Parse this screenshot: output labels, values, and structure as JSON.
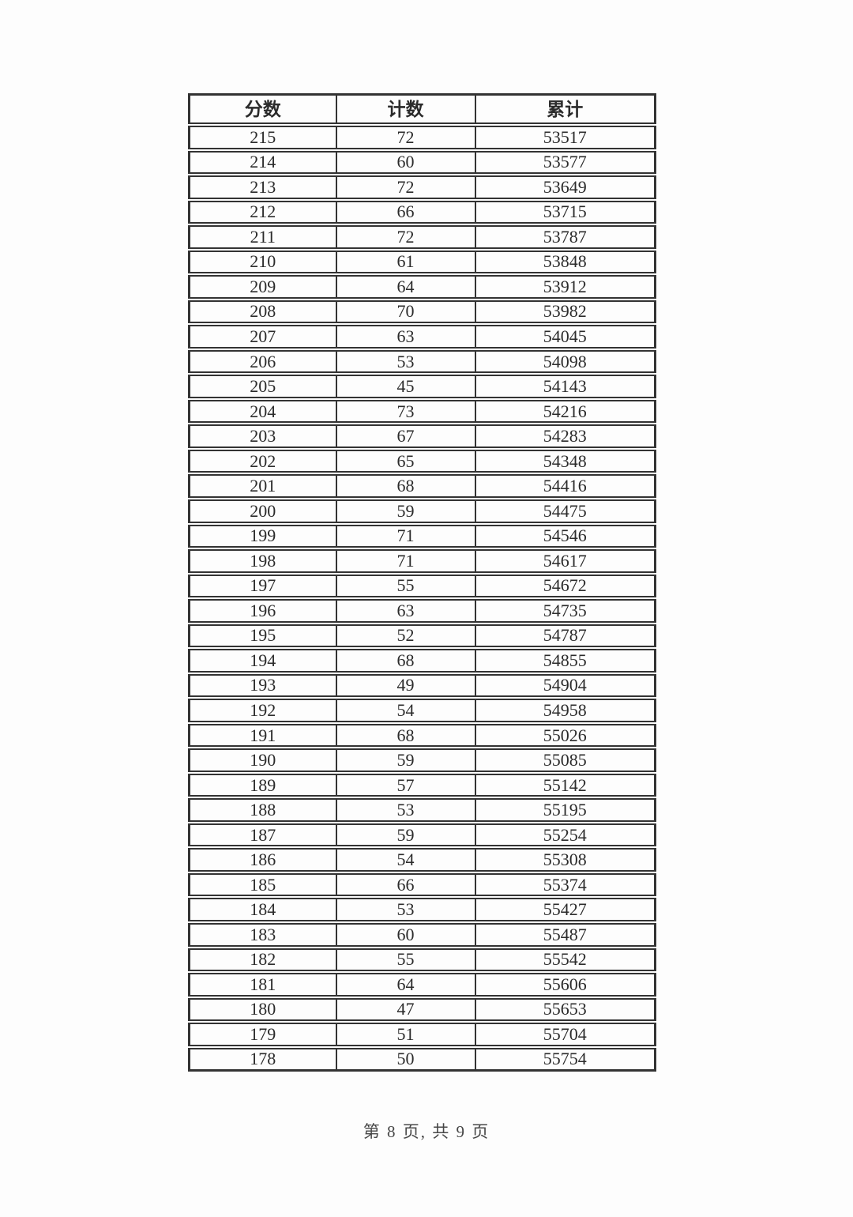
{
  "table": {
    "headers": [
      "分数",
      "计数",
      "累计"
    ],
    "rows": [
      [
        215,
        72,
        53517
      ],
      [
        214,
        60,
        53577
      ],
      [
        213,
        72,
        53649
      ],
      [
        212,
        66,
        53715
      ],
      [
        211,
        72,
        53787
      ],
      [
        210,
        61,
        53848
      ],
      [
        209,
        64,
        53912
      ],
      [
        208,
        70,
        53982
      ],
      [
        207,
        63,
        54045
      ],
      [
        206,
        53,
        54098
      ],
      [
        205,
        45,
        54143
      ],
      [
        204,
        73,
        54216
      ],
      [
        203,
        67,
        54283
      ],
      [
        202,
        65,
        54348
      ],
      [
        201,
        68,
        54416
      ],
      [
        200,
        59,
        54475
      ],
      [
        199,
        71,
        54546
      ],
      [
        198,
        71,
        54617
      ],
      [
        197,
        55,
        54672
      ],
      [
        196,
        63,
        54735
      ],
      [
        195,
        52,
        54787
      ],
      [
        194,
        68,
        54855
      ],
      [
        193,
        49,
        54904
      ],
      [
        192,
        54,
        54958
      ],
      [
        191,
        68,
        55026
      ],
      [
        190,
        59,
        55085
      ],
      [
        189,
        57,
        55142
      ],
      [
        188,
        53,
        55195
      ],
      [
        187,
        59,
        55254
      ],
      [
        186,
        54,
        55308
      ],
      [
        185,
        66,
        55374
      ],
      [
        184,
        53,
        55427
      ],
      [
        183,
        60,
        55487
      ],
      [
        182,
        55,
        55542
      ],
      [
        181,
        64,
        55606
      ],
      [
        180,
        47,
        55653
      ],
      [
        179,
        51,
        55704
      ],
      [
        178,
        50,
        55754
      ]
    ]
  },
  "footer": {
    "page_label": "第 8 页, 共 9 页"
  },
  "colors": {
    "border": "#333333",
    "text": "#2b2b2b",
    "page_background": "#fdfdfd"
  }
}
